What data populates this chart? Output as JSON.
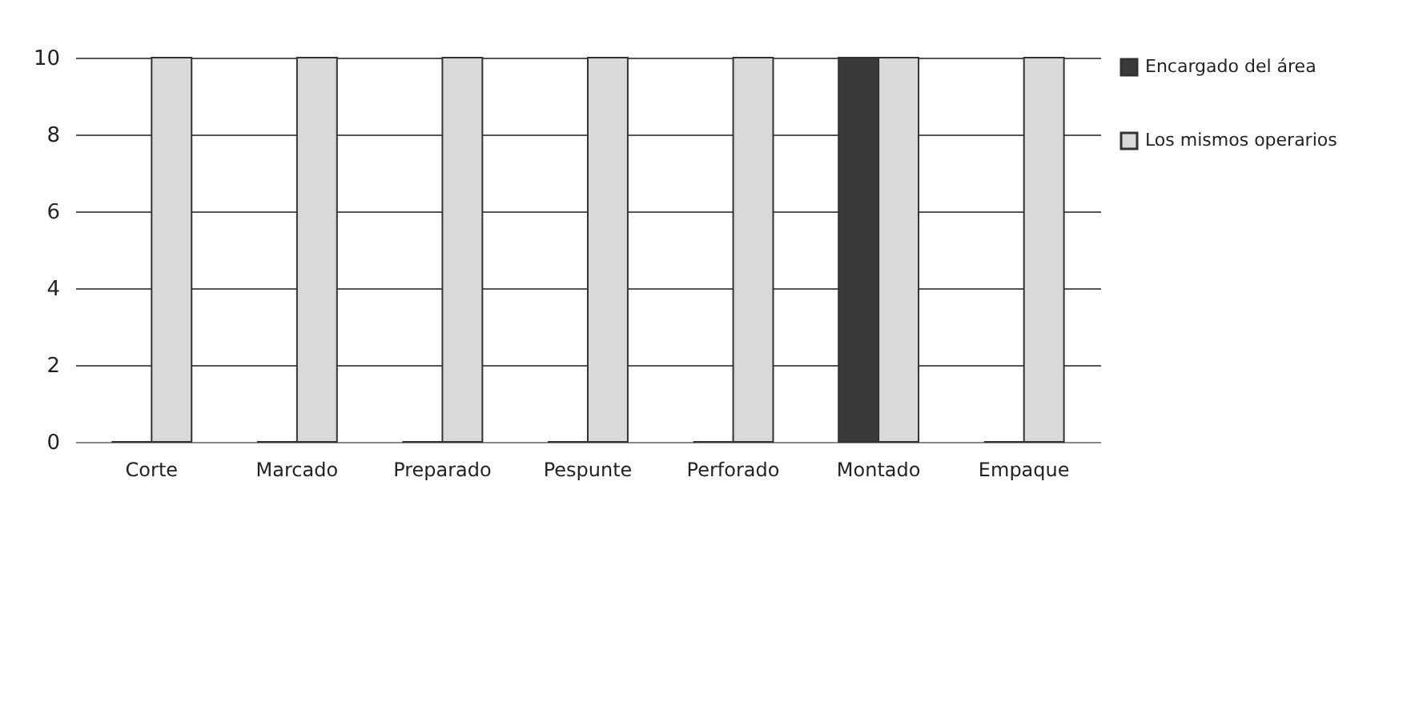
{
  "chart_data": {
    "type": "bar",
    "categories": [
      "Corte",
      "Marcado",
      "Preparado",
      "Pespunte",
      "Perforado",
      "Montado",
      "Empaque"
    ],
    "series": [
      {
        "name": "Encargado del área",
        "color": "#3a3a3a",
        "values": [
          0,
          0,
          0,
          0,
          0,
          10,
          0
        ]
      },
      {
        "name": "Los mismos operarios",
        "color": "#d9d9d9",
        "values": [
          10,
          10,
          10,
          10,
          10,
          10,
          10
        ]
      }
    ],
    "ylim": [
      0,
      10
    ],
    "yticks": [
      0,
      2,
      4,
      6,
      8,
      10
    ],
    "grid": "y",
    "legend": "right"
  }
}
